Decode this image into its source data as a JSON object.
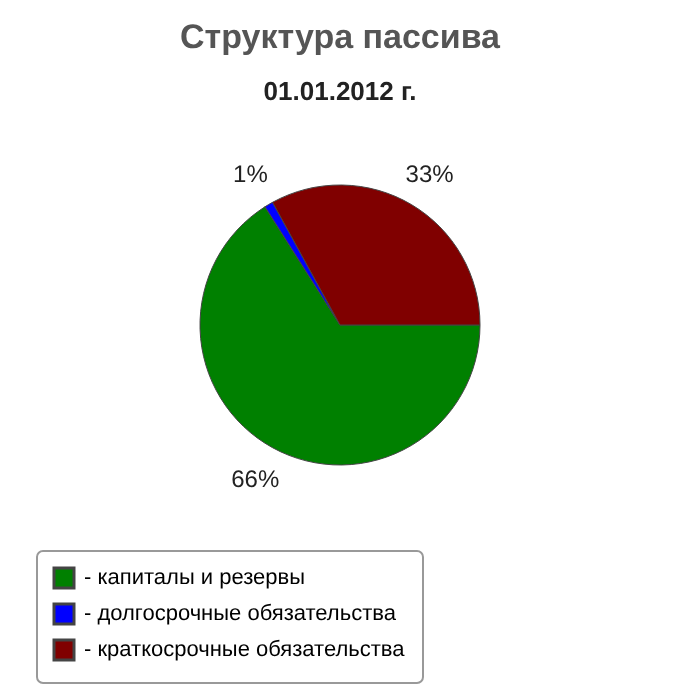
{
  "chart_data": {
    "type": "pie",
    "title": "Структура пассива",
    "subtitle": "01.01.2012 г.",
    "categories": [
      "- капиталы и резервы",
      "- долгосрочные обязательства",
      "- краткосрочные обязательства"
    ],
    "values": [
      66,
      1,
      33
    ],
    "colors": [
      "#008000",
      "#0000ff",
      "#800000"
    ],
    "value_labels": [
      "66%",
      "1%",
      "33%"
    ],
    "legend": "bottom"
  }
}
